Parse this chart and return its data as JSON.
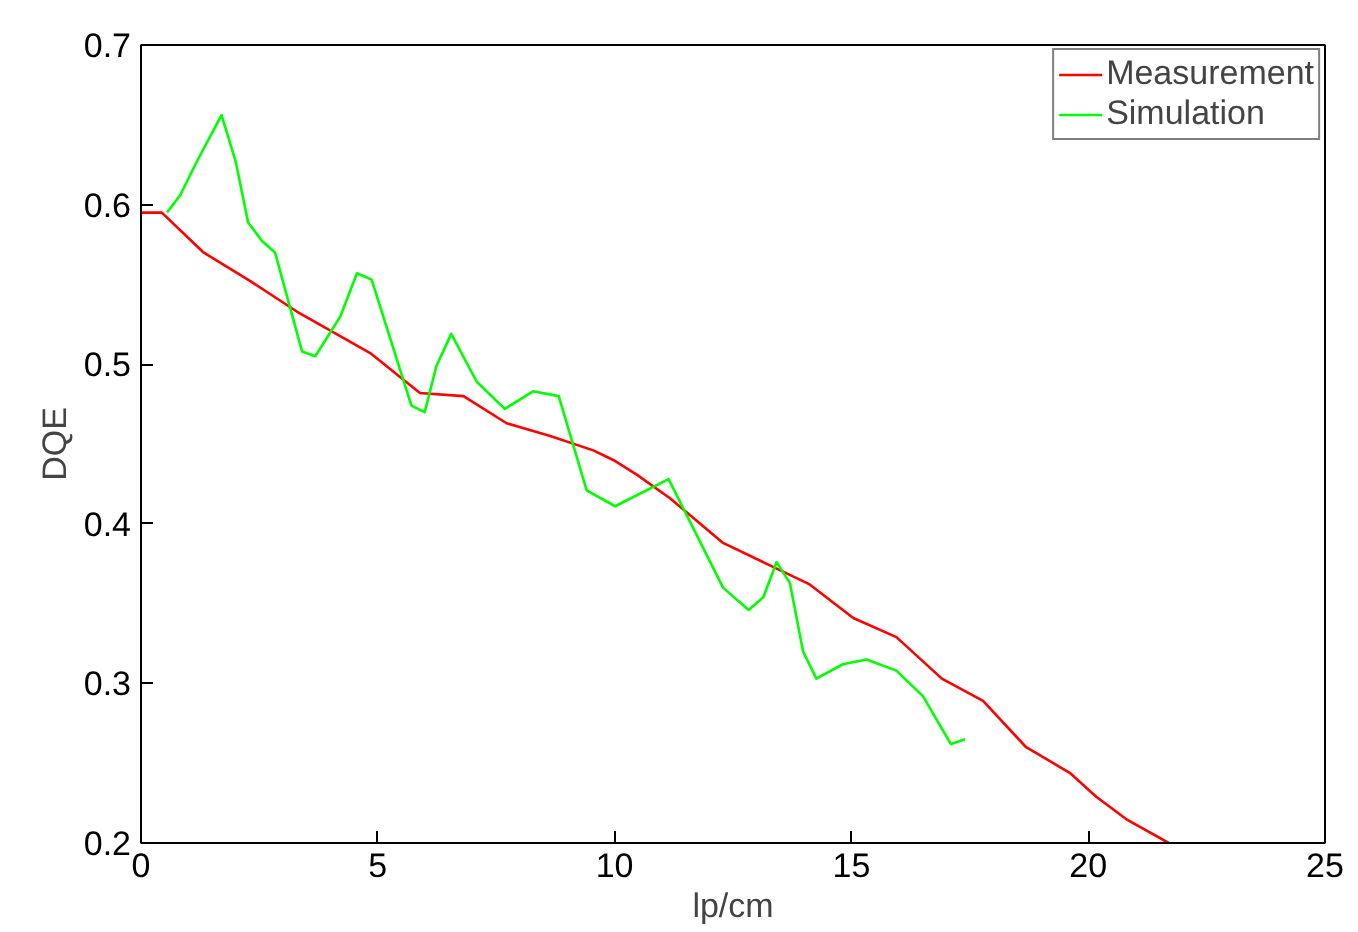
{
  "chart_data": {
    "type": "line",
    "xlabel": "lp/cm",
    "ylabel": "DQE",
    "xlim": [
      0,
      25
    ],
    "ylim": [
      0.2,
      0.7
    ],
    "xticks": [
      0,
      5,
      10,
      15,
      20,
      25
    ],
    "yticks": [
      0.2,
      0.3,
      0.4,
      0.5,
      0.6,
      0.7
    ],
    "grid": false,
    "legend": "top right",
    "line_style": "solid",
    "marker": "none",
    "series": [
      {
        "name": "Measurement",
        "color": "#ff0000",
        "x": [
          0,
          0.44,
          1.32,
          2.31,
          3.29,
          4.84,
          5.89,
          6.81,
          7.72,
          8.64,
          9.55,
          9.97,
          10.46,
          11.17,
          12.29,
          14.12,
          15.04,
          15.95,
          16.91,
          17.78,
          18.69,
          19.61,
          20.17,
          20.8,
          21.7
        ],
        "values": [
          0.595,
          0.595,
          0.57,
          0.552,
          0.533,
          0.507,
          0.482,
          0.48,
          0.463,
          0.455,
          0.446,
          0.44,
          0.431,
          0.416,
          0.388,
          0.362,
          0.341,
          0.329,
          0.303,
          0.289,
          0.26,
          0.244,
          0.229,
          0.215,
          0.2
        ]
      },
      {
        "name": "Simulation",
        "color": "#00ff00",
        "x": [
          0.55,
          0.83,
          1.18,
          1.7,
          2.0,
          2.26,
          2.56,
          2.83,
          3.4,
          3.68,
          4.21,
          4.56,
          4.87,
          5.71,
          5.99,
          6.24,
          6.55,
          7.09,
          7.68,
          8.28,
          8.82,
          9.41,
          10.01,
          11.14,
          12.29,
          12.83,
          13.14,
          13.42,
          13.7,
          13.98,
          14.26,
          14.82,
          15.32,
          15.95,
          16.51,
          17.1,
          17.4
        ],
        "values": [
          0.595,
          0.606,
          0.627,
          0.656,
          0.627,
          0.589,
          0.577,
          0.57,
          0.508,
          0.505,
          0.53,
          0.557,
          0.553,
          0.474,
          0.47,
          0.499,
          0.519,
          0.489,
          0.472,
          0.483,
          0.48,
          0.421,
          0.411,
          0.428,
          0.36,
          0.346,
          0.354,
          0.376,
          0.363,
          0.32,
          0.303,
          0.312,
          0.315,
          0.308,
          0.292,
          0.262,
          0.265
        ]
      }
    ]
  }
}
